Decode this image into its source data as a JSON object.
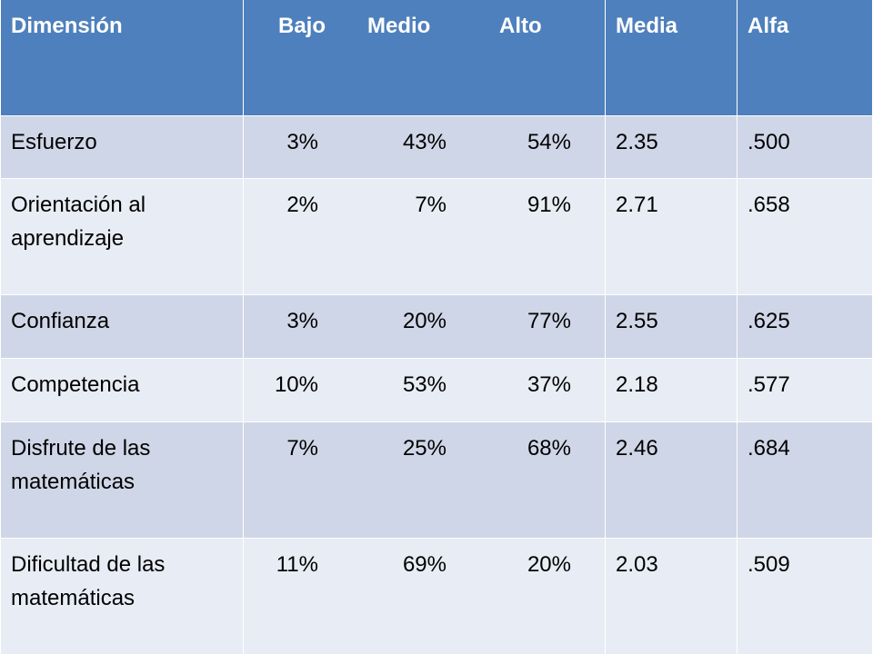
{
  "header": {
    "dimension": "Dimensión",
    "low": "Bajo",
    "mid": "Medio",
    "high": "Alto",
    "mean": "Media",
    "alpha": "Alfa"
  },
  "rows": [
    {
      "dimension": "Esfuerzo",
      "low": "3%",
      "mid": "43%",
      "high": "54%",
      "mean": "2.35",
      "alpha": ".500"
    },
    {
      "dimension": "Orientación al aprendizaje",
      "low": "2%",
      "mid": "7%",
      "high": "91%",
      "mean": "2.71",
      "alpha": ".658"
    },
    {
      "dimension": "Confianza",
      "low": "3%",
      "mid": "20%",
      "high": "77%",
      "mean": "2.55",
      "alpha": ".625"
    },
    {
      "dimension": "Competencia",
      "low": "10%",
      "mid": "53%",
      "high": "37%",
      "mean": "2.18",
      "alpha": ".577"
    },
    {
      "dimension": "Disfrute de las matemáticas",
      "low": "7%",
      "mid": "25%",
      "high": "68%",
      "mean": "2.46",
      "alpha": ".684"
    },
    {
      "dimension": "Dificultad de las matemáticas",
      "low": "11%",
      "mid": "69%",
      "high": "20%",
      "mean": "2.03",
      "alpha": ".509"
    }
  ],
  "colors": {
    "header_bg": "#4e80bd",
    "row_odd_bg": "#cfd6e7",
    "row_even_bg": "#e8ecf4"
  }
}
